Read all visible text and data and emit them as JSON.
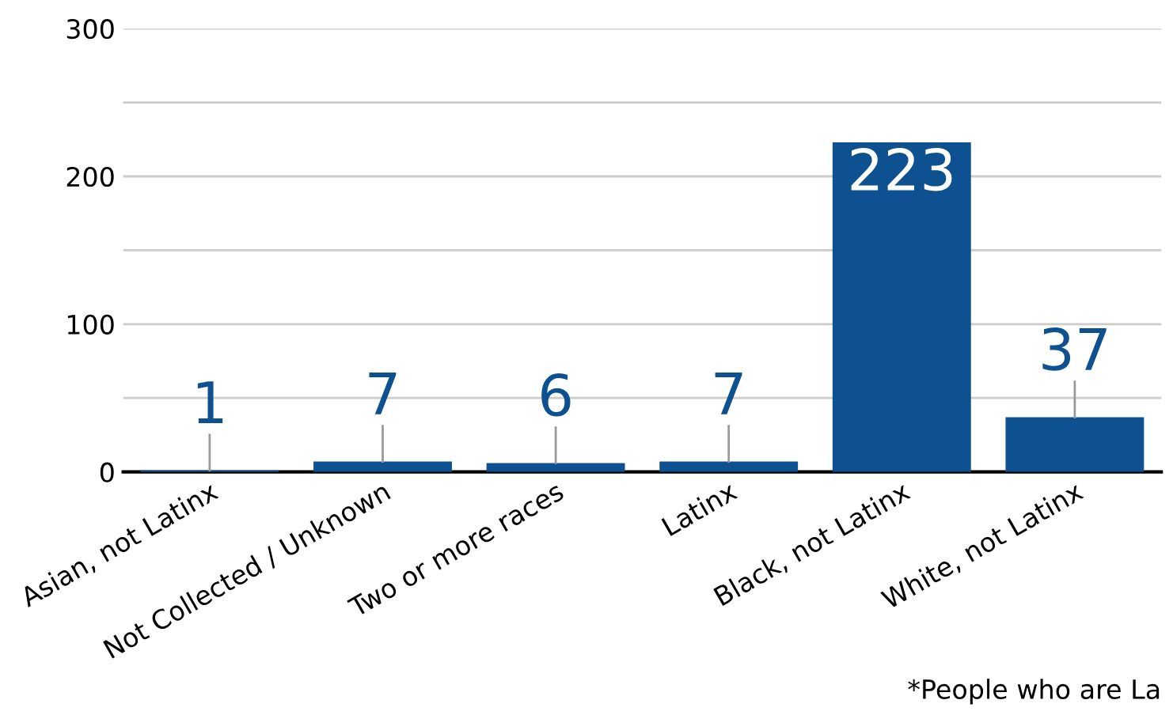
{
  "chart_data": {
    "type": "bar",
    "categories": [
      "Asian, not Latinx",
      "Not Collected / Unknown",
      "Two or more races",
      "Latinx",
      "Black, not Latinx",
      "White, not Latinx"
    ],
    "values": [
      1,
      7,
      6,
      7,
      223,
      37
    ],
    "color": "#0e5190",
    "data_labels": true,
    "ylim": [
      0,
      300
    ],
    "yticks": [
      0,
      {
        "value": 50,
        "label": null
      },
      100,
      {
        "value": 150,
        "label": null
      },
      200,
      {
        "value": 250,
        "label": null
      },
      300
    ],
    "grid": "y",
    "legend": false,
    "annotations": [
      "*People who are La"
    ]
  }
}
